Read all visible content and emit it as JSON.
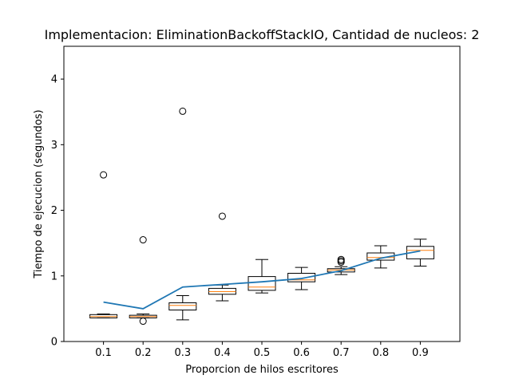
{
  "chart_data": {
    "type": "box",
    "title": "Implementacion: EliminationBackoffStackIO, Cantidad de nucleos: 2",
    "xlabel": "Proporcion de hilos escritores",
    "ylabel": "Tiempo de ejecucion (segundos)",
    "categories": [
      "0.1",
      "0.2",
      "0.3",
      "0.4",
      "0.5",
      "0.6",
      "0.7",
      "0.8",
      "0.9"
    ],
    "x": [
      0.1,
      0.2,
      0.3,
      0.4,
      0.5,
      0.6,
      0.7,
      0.8,
      0.9
    ],
    "xlim": [
      0.0,
      1.0
    ],
    "ylim": [
      0,
      4.5
    ],
    "yticks": [
      0,
      1,
      2,
      3,
      4
    ],
    "grid": false,
    "boxes": [
      {
        "x": 0.1,
        "whislo": 0.36,
        "q1": 0.36,
        "med": 0.38,
        "q3": 0.41,
        "whishi": 0.42,
        "fliers": [
          2.54
        ]
      },
      {
        "x": 0.2,
        "whislo": 0.36,
        "q1": 0.36,
        "med": 0.38,
        "q3": 0.4,
        "whishi": 0.42,
        "fliers": [
          1.55,
          0.31
        ]
      },
      {
        "x": 0.3,
        "whislo": 0.33,
        "q1": 0.48,
        "med": 0.55,
        "q3": 0.59,
        "whishi": 0.7,
        "fliers": [
          3.51
        ]
      },
      {
        "x": 0.4,
        "whislo": 0.62,
        "q1": 0.72,
        "med": 0.76,
        "q3": 0.81,
        "whishi": 0.86,
        "fliers": [
          1.91
        ]
      },
      {
        "x": 0.5,
        "whislo": 0.74,
        "q1": 0.78,
        "med": 0.83,
        "q3": 0.99,
        "whishi": 1.25,
        "fliers": []
      },
      {
        "x": 0.6,
        "whislo": 0.79,
        "q1": 0.91,
        "med": 0.94,
        "q3": 1.04,
        "whishi": 1.13,
        "fliers": []
      },
      {
        "x": 0.7,
        "whislo": 1.02,
        "q1": 1.06,
        "med": 1.09,
        "q3": 1.11,
        "whishi": 1.14,
        "fliers": [
          1.21,
          1.23,
          1.25
        ]
      },
      {
        "x": 0.8,
        "whislo": 1.12,
        "q1": 1.24,
        "med": 1.28,
        "q3": 1.35,
        "whishi": 1.46,
        "fliers": []
      },
      {
        "x": 0.9,
        "whislo": 1.15,
        "q1": 1.26,
        "med": 1.39,
        "q3": 1.45,
        "whishi": 1.56,
        "fliers": []
      }
    ],
    "mean_line": {
      "values": [
        0.6,
        0.5,
        0.83,
        0.87,
        0.91,
        0.96,
        1.08,
        1.27,
        1.38
      ]
    },
    "colors": {
      "mean_line": "#1f77b4",
      "median": "#ff7f0e",
      "box": "#000000"
    }
  }
}
